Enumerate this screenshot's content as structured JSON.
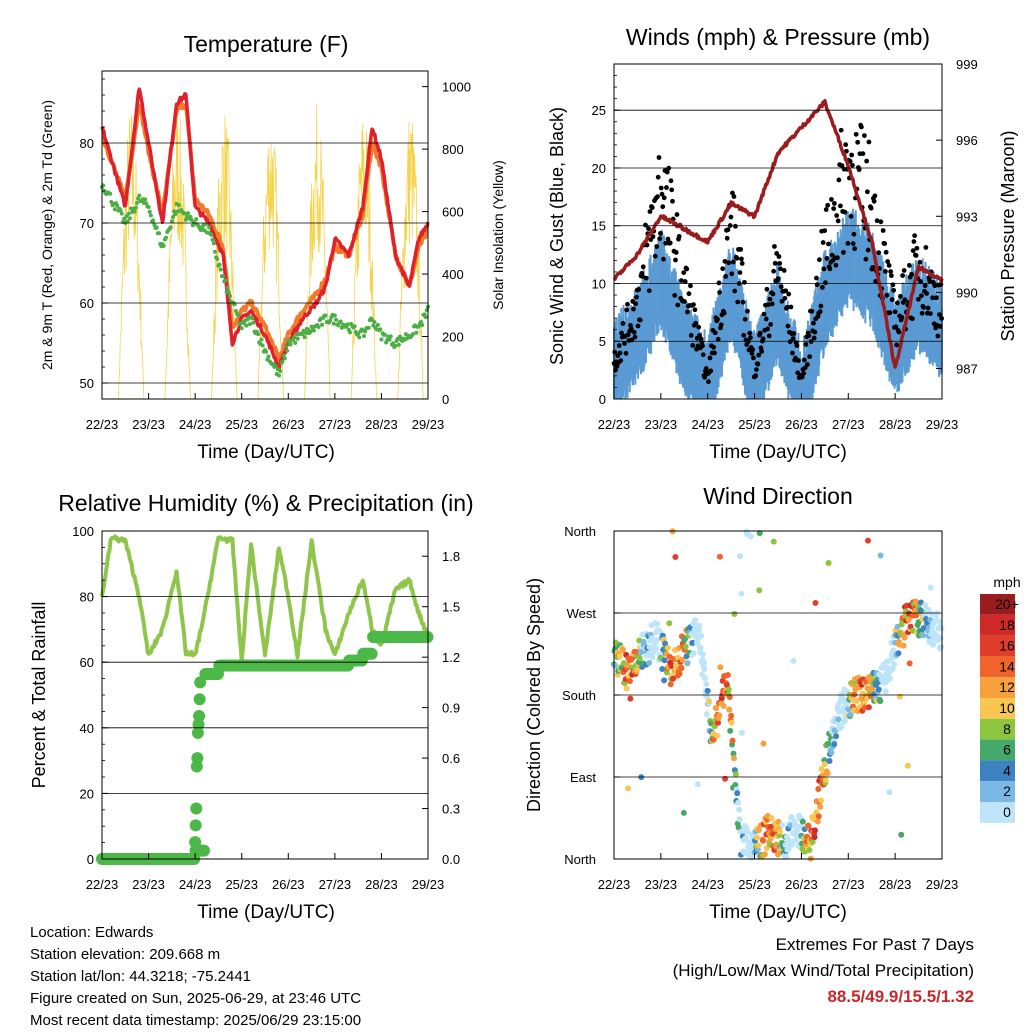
{
  "x_ticks": [
    "22/23",
    "23/23",
    "24/23",
    "25/23",
    "26/23",
    "27/23",
    "28/23",
    "29/23"
  ],
  "x_label": "Time (Day/UTC)",
  "colors": {
    "temp_2m": "#e0202a",
    "temp_9m": "#f07b2b",
    "dewpoint": "#4caf46",
    "solar": "#f5d44c",
    "wind": "#5a9bd4",
    "gust": "#000000",
    "pressure": "#9b1c1c",
    "rh": "#8fc54a",
    "precip": "#4cb848"
  },
  "charts": [
    {
      "id": "temperature",
      "title": "Temperature (F)",
      "ylabel": "2m & 9m T (Red, Orange) & 2m Td (Green)",
      "ylabel_right": "Solar Insolation (Yellow)",
      "yticks": [
        "50",
        "60",
        "70",
        "80"
      ],
      "yticks_right": [
        "0",
        "200",
        "400",
        "600",
        "800",
        "1000"
      ]
    },
    {
      "id": "winds",
      "title": "Winds (mph) & Pressure (mb)",
      "ylabel": "Sonic Wind & Gust (Blue, Black)",
      "ylabel_right": "Station Pressure (Maroon)",
      "yticks": [
        "0",
        "5",
        "10",
        "15",
        "20",
        "25"
      ],
      "yticks_right": [
        "987",
        "990",
        "993",
        "996",
        "999"
      ]
    },
    {
      "id": "humidity",
      "title": "Relative Humidity (%) & Precipitation (in)",
      "ylabel": "Percent & Total Rainfall",
      "yticks": [
        "0",
        "20",
        "40",
        "60",
        "80",
        "100"
      ],
      "yticks_right": [
        "0.0",
        "0.3",
        "0.6",
        "0.9",
        "1.2",
        "1.5",
        "1.8"
      ]
    },
    {
      "id": "direction",
      "title": "Wind Direction",
      "ylabel": "Direction (Colored By Speed)",
      "yticks": [
        "North",
        "East",
        "South",
        "West",
        "North"
      ],
      "legend_title": "mph",
      "legend_labels": [
        "20+",
        "18",
        "16",
        "14",
        "12",
        "10",
        "8",
        "6",
        "4",
        "2",
        "0"
      ],
      "legend_colors": [
        "#9b1c1c",
        "#cf2a27",
        "#e03d2c",
        "#f0642c",
        "#f8a03c",
        "#f7c750",
        "#8cc63f",
        "#46a86a",
        "#3d82c1",
        "#7ab8e6",
        "#bde4f7"
      ]
    }
  ],
  "chart_data": [
    {
      "type": "line",
      "title": "Temperature (F)",
      "ylim": [
        48,
        89
      ],
      "ylim_right": [
        0,
        1050
      ],
      "x": [
        22,
        22.5,
        22.8,
        23,
        23.3,
        23.6,
        23.8,
        24,
        24.3,
        24.6,
        24.8,
        25,
        25.2,
        25.5,
        25.8,
        26,
        26.3,
        26.6,
        26.8,
        27,
        27.3,
        27.6,
        27.8,
        28,
        28.3,
        28.6,
        28.8,
        29
      ],
      "series": [
        {
          "name": "2m T",
          "values": [
            82,
            72,
            87,
            80,
            70,
            85,
            86,
            72,
            70,
            66,
            55,
            58,
            59,
            56,
            52,
            55,
            58,
            60,
            62,
            68,
            66,
            72,
            82,
            78,
            66,
            62,
            68,
            70
          ]
        },
        {
          "name": "9m T",
          "values": [
            81,
            73,
            85,
            79,
            71,
            84,
            85,
            73,
            71,
            67,
            57,
            59,
            60,
            57,
            53,
            56,
            59,
            61,
            63,
            67,
            66,
            71,
            80,
            77,
            66,
            62,
            67,
            69
          ]
        },
        {
          "name": "2m Td",
          "values": [
            75,
            70,
            73,
            72,
            67,
            72,
            71,
            70,
            69,
            63,
            60,
            57,
            58,
            54,
            51,
            55,
            56,
            57,
            58,
            58,
            57,
            56,
            58,
            56,
            55,
            56,
            57,
            59
          ]
        }
      ]
    },
    {
      "type": "scatter",
      "title": "Winds (mph) & Pressure (mb)",
      "ylim": [
        0,
        29
      ],
      "ylim_right": [
        985.8,
        999
      ],
      "x": [
        22,
        22.5,
        23,
        23.5,
        24,
        24.5,
        25,
        25.5,
        26,
        26.5,
        27,
        27.5,
        28,
        28.5,
        29
      ],
      "series": [
        {
          "name": "Sonic Wind",
          "values": [
            2,
            5,
            10,
            4,
            1,
            9,
            1,
            7,
            0,
            8,
            12,
            10,
            4,
            8,
            5
          ]
        },
        {
          "name": "Gust",
          "values": [
            4,
            10,
            22,
            12,
            2,
            18,
            3,
            14,
            2,
            15,
            24,
            20,
            8,
            14,
            9
          ]
        },
        {
          "name": "Station Pressure",
          "values": [
            990.5,
            991.5,
            993,
            992.5,
            992,
            993.5,
            993,
            995.5,
            996.5,
            997.5,
            995,
            992,
            987,
            991,
            990.5
          ]
        }
      ]
    },
    {
      "type": "line",
      "title": "Relative Humidity (%) & Precipitation (in)",
      "ylim": [
        0,
        100
      ],
      "ylim_right": [
        0,
        1.95
      ],
      "x": [
        22,
        22.2,
        22.5,
        22.8,
        23,
        23.3,
        23.6,
        23.8,
        24,
        24.2,
        24.5,
        24.8,
        25,
        25.2,
        25.5,
        25.8,
        26,
        26.2,
        26.5,
        26.8,
        27,
        27.3,
        27.6,
        27.8,
        28,
        28.3,
        28.6,
        28.8,
        29
      ],
      "series": [
        {
          "name": "RH",
          "values": [
            80,
            98,
            97,
            80,
            62,
            70,
            88,
            63,
            62,
            75,
            98,
            97,
            60,
            96,
            62,
            95,
            80,
            62,
            97,
            70,
            62,
            75,
            85,
            70,
            65,
            82,
            85,
            75,
            68
          ]
        },
        {
          "name": "Total Rainfall",
          "values": [
            0,
            0,
            0,
            0,
            0,
            0,
            0,
            0,
            0.05,
            1.1,
            1.15,
            1.15,
            1.15,
            1.15,
            1.15,
            1.15,
            1.15,
            1.15,
            1.15,
            1.15,
            1.15,
            1.18,
            1.22,
            1.32,
            1.32,
            1.32,
            1.32,
            1.32,
            1.32
          ]
        }
      ]
    },
    {
      "type": "scatter",
      "title": "Wind Direction",
      "ylim": [
        0,
        360
      ],
      "x": [
        22,
        22.3,
        22.6,
        22.9,
        23.2,
        23.5,
        23.8,
        24.1,
        24.4,
        24.7,
        25,
        25.3,
        25.6,
        25.9,
        26.2,
        26.5,
        26.8,
        27.1,
        27.4,
        27.7,
        28,
        28.3,
        28.6,
        28.9
      ],
      "series": [
        {
          "name": "Direction",
          "values": [
            230,
            200,
            230,
            240,
            210,
            230,
            250,
            130,
            200,
            20,
            10,
            30,
            20,
            30,
            20,
            100,
            160,
            180,
            180,
            190,
            230,
            270,
            260,
            250
          ]
        }
      ]
    }
  ],
  "info": {
    "location": "Location: Edwards",
    "elevation": "Station elevation: 209.668 m",
    "latlon": "Station lat/lon: 44.3218; -75.2441",
    "created": "Figure created on Sun, 2025-06-29, at 23:46 UTC",
    "recent": "Most recent data timestamp: 2025/06/29 23:15:00"
  },
  "extremes": {
    "title": "Extremes For Past 7 Days",
    "subtitle": "(High/Low/Max Wind/Total Precipitation)",
    "values": "88.5/49.9/15.5/1.32"
  }
}
